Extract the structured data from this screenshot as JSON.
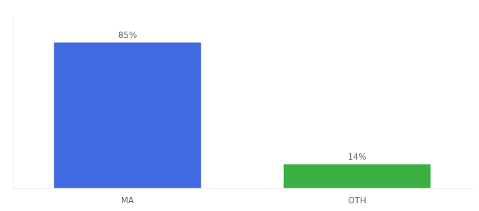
{
  "chart_data": {
    "type": "bar",
    "categories": [
      "MA",
      "OTH"
    ],
    "values": [
      85,
      14
    ],
    "colors": [
      "#4169E1",
      "#3CB043"
    ],
    "ylim": [
      0,
      100
    ],
    "tick_labels": "x",
    "data_labels": true,
    "value_labels": [
      "85%",
      "14%"
    ],
    "grid": false
  }
}
